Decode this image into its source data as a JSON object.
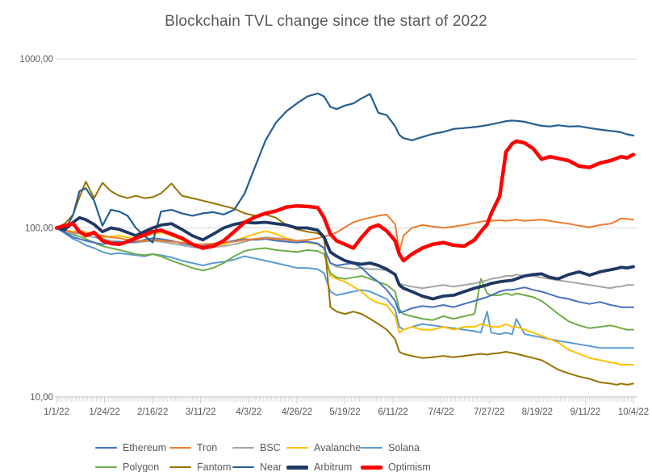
{
  "chart_data": {
    "type": "line",
    "title": "Blockchain TVL change since the start of 2022",
    "background_color": "#ffffff",
    "gridline_color": "#d9d9d9",
    "axis_line_color": "#bfbfbf",
    "text_color": "#595959",
    "y_axis": {
      "scale": "log",
      "range": [
        10,
        1000
      ],
      "tick_values": [
        1000,
        100,
        10
      ],
      "tick_labels": [
        "1000,00",
        "100,00",
        "10,00"
      ],
      "gridline_values": [
        1000,
        100
      ],
      "baseline_value": 100
    },
    "x_axis": {
      "unit": "days since 1/1/22",
      "range_days": [
        0,
        276
      ],
      "tick_days": [
        0,
        23,
        46,
        69,
        92,
        115,
        138,
        161,
        184,
        207,
        230,
        253,
        276
      ],
      "tick_labels": [
        "1/1/22",
        "1/24/22",
        "2/16/22",
        "3/11/22",
        "4/3/22",
        "4/26/22",
        "5/19/22",
        "6/11/22",
        "7/4/22",
        "7/27/22",
        "8/19/22",
        "9/11/22",
        "10/4/22"
      ],
      "minor_ticks": "daily"
    },
    "days": [
      0,
      4,
      8,
      11,
      14,
      18,
      22,
      26,
      30,
      34,
      38,
      42,
      46,
      50,
      55,
      60,
      65,
      70,
      75,
      80,
      85,
      90,
      95,
      100,
      105,
      110,
      115,
      120,
      125,
      128,
      131,
      134,
      138,
      142,
      146,
      150,
      154,
      158,
      162,
      164,
      166,
      170,
      175,
      180,
      185,
      190,
      195,
      200,
      203,
      206,
      208,
      212,
      215,
      218,
      220,
      224,
      228,
      232,
      236,
      240,
      245,
      250,
      255,
      260,
      265,
      268,
      270,
      273,
      276
    ],
    "series": [
      {
        "name": "Solana",
        "color": "#5B9BD5",
        "width": 2,
        "values": [
          100,
          93,
          86,
          83,
          79,
          76,
          72,
          70,
          71,
          70,
          69,
          68,
          70,
          69,
          67,
          64,
          62,
          60,
          62,
          63,
          65,
          68,
          66,
          64,
          62,
          60,
          58,
          58,
          57,
          54,
          42,
          40,
          41,
          42,
          43,
          42,
          40,
          38,
          33,
          26,
          25,
          26,
          27,
          26.5,
          26,
          25.5,
          25,
          24.5,
          24,
          32,
          24,
          23.5,
          24,
          23.5,
          29,
          23.5,
          23,
          22.5,
          22,
          21.5,
          21,
          20.5,
          20,
          19.5,
          19.5,
          19.5,
          19.5,
          19.5,
          19.5
        ]
      },
      {
        "name": "Avalanche",
        "color": "#FFC000",
        "width": 2,
        "values": [
          100,
          97,
          95,
          97,
          94,
          92,
          88,
          89,
          90,
          88,
          87,
          89,
          92,
          94,
          90,
          85,
          80,
          76,
          78,
          80,
          84,
          88,
          92,
          96,
          92,
          87,
          84,
          82,
          80,
          76,
          52,
          50,
          48,
          45,
          42,
          38,
          36,
          35,
          30,
          24,
          25,
          26,
          25,
          25,
          26,
          25,
          26,
          26,
          27,
          26.5,
          26,
          26,
          27,
          26,
          26,
          25,
          24,
          23,
          22,
          21,
          19,
          18,
          17,
          16.5,
          16,
          15.8,
          15.5,
          15.5,
          15.5
        ]
      },
      {
        "name": "Polygon",
        "color": "#70AD47",
        "width": 2,
        "values": [
          100,
          95,
          91,
          89,
          86,
          82,
          78,
          76,
          74,
          72,
          70,
          69,
          70,
          68,
          64,
          61,
          58,
          56,
          58,
          62,
          68,
          73,
          75,
          76,
          74,
          73,
          72,
          74,
          73,
          70,
          54,
          51,
          50,
          51,
          52,
          50,
          48,
          46,
          42,
          33,
          31,
          30,
          29,
          28.5,
          30,
          29,
          30,
          31,
          50,
          41,
          40,
          40,
          41,
          40,
          41,
          40,
          39,
          37,
          34,
          31,
          28,
          26.5,
          25.5,
          26,
          26.5,
          26,
          25.5,
          25,
          25
        ]
      },
      {
        "name": "Fantom",
        "color": "#997300",
        "width": 2,
        "values": [
          100,
          106,
          120,
          152,
          188,
          150,
          185,
          165,
          155,
          150,
          155,
          150,
          152,
          160,
          183,
          155,
          150,
          145,
          140,
          135,
          130,
          122,
          118,
          120,
          115,
          104,
          98,
          95,
          93,
          88,
          34,
          32,
          31,
          32,
          31,
          29,
          27,
          25,
          22,
          18.5,
          18,
          17.5,
          17,
          17.2,
          17.5,
          17.2,
          17.5,
          17.8,
          18,
          17.8,
          18,
          18.2,
          18.5,
          18.2,
          18,
          17.5,
          17,
          16.5,
          15.5,
          14.5,
          13.8,
          13.2,
          12.8,
          12.2,
          12,
          11.8,
          12,
          11.8,
          12
        ]
      },
      {
        "name": "BSC",
        "color": "#A5A5A5",
        "width": 2,
        "values": [
          100,
          96,
          92,
          93,
          90,
          88,
          86,
          84,
          83,
          82,
          82,
          83,
          84,
          83,
          81,
          79,
          77,
          76,
          77,
          78,
          80,
          83,
          86,
          88,
          87,
          86,
          84,
          83,
          80,
          76,
          62,
          59,
          58,
          57,
          58,
          57,
          57,
          56,
          53,
          47,
          46,
          45,
          44,
          45,
          46,
          45,
          46,
          47,
          48,
          49,
          50,
          51,
          52,
          52,
          53,
          52,
          52,
          51,
          50,
          49,
          48,
          47,
          46,
          45,
          44,
          45,
          45,
          46,
          46
        ]
      },
      {
        "name": "Ethereum",
        "color": "#4472C4",
        "width": 2,
        "values": [
          100,
          94,
          88,
          86,
          84,
          82,
          80,
          82,
          83,
          82,
          83,
          85,
          87,
          86,
          84,
          81,
          79,
          78,
          80,
          82,
          84,
          86,
          85,
          86,
          84,
          83,
          82,
          83,
          81,
          76,
          62,
          60,
          61,
          62,
          58,
          52,
          48,
          43,
          37,
          31.5,
          32,
          33.5,
          34.5,
          34,
          35,
          34,
          35.5,
          37,
          38,
          39,
          40,
          42,
          43,
          43,
          43.5,
          44.5,
          43,
          42,
          40.5,
          39,
          38,
          36.5,
          35.5,
          36.5,
          35,
          34.5,
          34,
          34,
          34
        ]
      },
      {
        "name": "Tron",
        "color": "#ED7D31",
        "width": 2,
        "values": [
          100,
          97,
          94,
          95,
          93,
          92,
          90,
          88,
          87,
          85,
          84,
          84,
          85,
          84,
          83,
          82,
          80,
          80,
          81,
          82,
          83,
          85,
          86,
          87,
          86,
          85,
          84,
          85,
          87,
          89,
          91,
          94,
          101,
          108,
          112,
          115,
          118,
          120,
          105,
          72,
          90,
          100,
          104,
          102,
          100,
          102,
          104,
          107,
          109,
          110,
          110,
          111,
          110,
          111,
          112,
          110,
          111,
          112,
          110,
          108,
          106,
          103,
          101,
          104,
          106,
          110,
          114,
          113,
          112
        ]
      },
      {
        "name": "Near",
        "color": "#255E91",
        "width": 2.2,
        "values": [
          100,
          96,
          120,
          165,
          172,
          145,
          103,
          128,
          125,
          118,
          100,
          90,
          82,
          125,
          128,
          122,
          118,
          122,
          124,
          120,
          128,
          160,
          230,
          330,
          420,
          490,
          545,
          600,
          625,
          600,
          520,
          505,
          530,
          545,
          585,
          620,
          480,
          465,
          400,
          355,
          340,
          330,
          345,
          360,
          370,
          385,
          390,
          395,
          400,
          405,
          410,
          420,
          428,
          432,
          430,
          425,
          412,
          402,
          398,
          405,
          398,
          400,
          390,
          382,
          375,
          372,
          368,
          358,
          352
        ]
      },
      {
        "name": "Arbitrum",
        "color": "#1F3864",
        "width": 3.8,
        "values": [
          100,
          98,
          108,
          115,
          112,
          105,
          95,
          100,
          98,
          94,
          90,
          95,
          100,
          104,
          106,
          98,
          90,
          85,
          92,
          100,
          105,
          108,
          107,
          108,
          106,
          104,
          100,
          100,
          97,
          88,
          72,
          68,
          64,
          62,
          61,
          62,
          60,
          57,
          53,
          46,
          44,
          42,
          39.5,
          38,
          39.5,
          40,
          42,
          44,
          45,
          46,
          47,
          48,
          48.5,
          49,
          50,
          52,
          53,
          53.5,
          51,
          50,
          53,
          55,
          52.5,
          55,
          56.5,
          57.5,
          58.5,
          58,
          59
        ]
      },
      {
        "name": "Optimism",
        "color": "#FF0000",
        "width": 4.5,
        "values": [
          100,
          103,
          106,
          95,
          90,
          94,
          84,
          81,
          80,
          83,
          87,
          91,
          95,
          97,
          92,
          87,
          80,
          76,
          78,
          84,
          95,
          108,
          116,
          122,
          126,
          133,
          135,
          134,
          132,
          115,
          92,
          84,
          80,
          76,
          88,
          100,
          104,
          96,
          84,
          70,
          64,
          70,
          76,
          80,
          82,
          79,
          78,
          85,
          95,
          105,
          122,
          154,
          281,
          315,
          326,
          318,
          295,
          255,
          264,
          258,
          250,
          232,
          228,
          242,
          250,
          258,
          264,
          260,
          272
        ]
      }
    ],
    "legend": {
      "position": "bottom",
      "rows": [
        [
          "Ethereum",
          "Tron",
          "BSC",
          "Avalanche",
          "Solana"
        ],
        [
          "Polygon",
          "Fantom",
          "Near",
          "Arbitrum",
          "Optimism"
        ]
      ]
    }
  }
}
